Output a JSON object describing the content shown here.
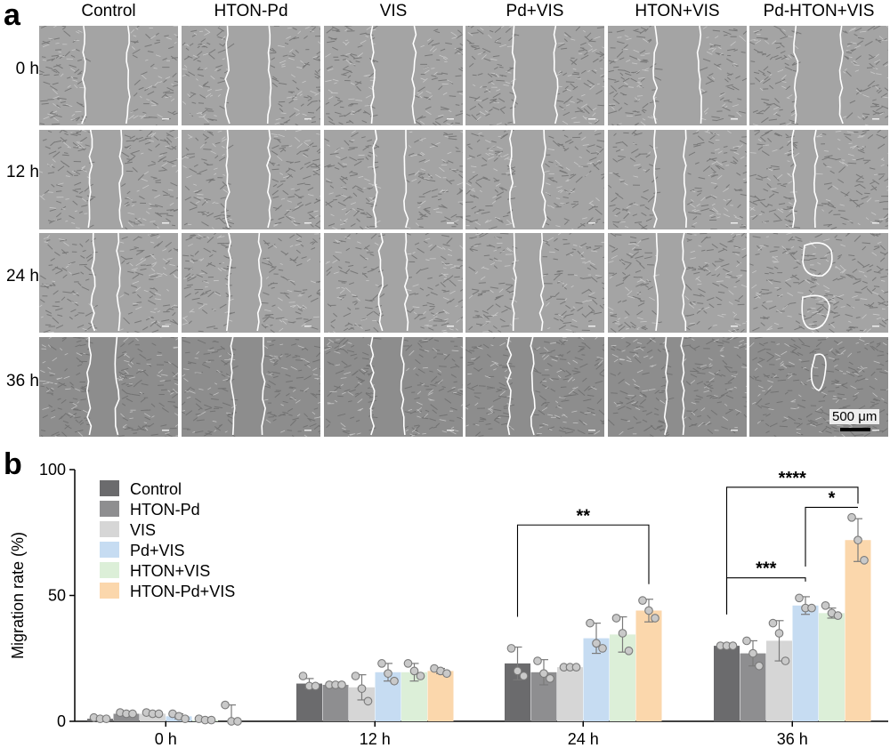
{
  "panel_a": {
    "letter": "a",
    "columns": [
      "Control",
      "HTON-Pd",
      "VIS",
      "Pd+VIS",
      "HTON+VIS",
      "Pd-HTON+VIS"
    ],
    "rows": [
      "0 h",
      "12 h",
      "24 h",
      "36 h"
    ],
    "scale_bar": "500 μm"
  },
  "panel_b": {
    "letter": "b"
  },
  "chart_data": {
    "type": "bar",
    "ylabel": "Migration rate (%)",
    "ylim": [
      0,
      100
    ],
    "yticks": [
      0,
      50,
      100
    ],
    "categories": [
      "0 h",
      "12 h",
      "24 h",
      "36 h"
    ],
    "series": [
      {
        "name": "Control",
        "color": "#6b6b6d",
        "values": [
          1,
          15,
          23,
          30
        ],
        "err": [
          0.5,
          2,
          6.5,
          0.5
        ],
        "points": [
          [
            1.5,
            1,
            1
          ],
          [
            18,
            14,
            14
          ],
          [
            29,
            20,
            18
          ],
          [
            30,
            30,
            30
          ]
        ]
      },
      {
        "name": "HTON-Pd",
        "color": "#8e8e90",
        "values": [
          3,
          14.5,
          19.5,
          27
        ],
        "err": [
          0.5,
          0.5,
          5,
          5
        ],
        "points": [
          [
            3.5,
            3,
            3
          ],
          [
            14.5,
            14.5,
            14.5
          ],
          [
            24,
            19,
            17
          ],
          [
            32,
            27,
            22
          ]
        ]
      },
      {
        "name": "VIS",
        "color": "#d6d6d6",
        "values": [
          3,
          13.5,
          21.5,
          32
        ],
        "err": [
          0.5,
          5,
          0.5,
          8
        ],
        "points": [
          [
            3.5,
            3,
            3
          ],
          [
            18,
            13,
            8
          ],
          [
            21.5,
            21.5,
            21.5
          ],
          [
            39,
            35,
            24
          ]
        ]
      },
      {
        "name": "Pd+VIS",
        "color": "#c6dcf2",
        "values": [
          2,
          19.5,
          33,
          46
        ],
        "err": [
          1,
          3.5,
          6,
          3.5
        ],
        "points": [
          [
            3,
            2,
            1
          ],
          [
            23,
            19,
            16
          ],
          [
            39,
            31,
            29
          ],
          [
            49,
            45,
            45
          ]
        ]
      },
      {
        "name": "HTON+VIS",
        "color": "#dcefd8",
        "values": [
          0.5,
          19.5,
          34.5,
          43
        ],
        "err": [
          0.5,
          3.5,
          7,
          2
        ],
        "points": [
          [
            1,
            0.5,
            0.5
          ],
          [
            23,
            20,
            18
          ],
          [
            41,
            35,
            28
          ],
          [
            46,
            43,
            42
          ]
        ]
      },
      {
        "name": "HTON-Pd+VIS",
        "color": "#fbd7ac",
        "values": [
          0,
          20,
          44,
          72
        ],
        "err": [
          6.5,
          1,
          4.5,
          8.5
        ],
        "points": [
          [
            6.5,
            0,
            0
          ],
          [
            21,
            20,
            19
          ],
          [
            48,
            44,
            41
          ],
          [
            81,
            72,
            64
          ]
        ]
      }
    ],
    "significance": [
      {
        "group": "24 h",
        "from": 0,
        "to": 5,
        "label": "**"
      },
      {
        "group": "36 h",
        "from": 0,
        "to": 5,
        "label": "****"
      },
      {
        "group": "36 h",
        "from": 3,
        "to": 5,
        "label": "*"
      },
      {
        "group": "36 h",
        "from": 0,
        "to": 3,
        "label": "***"
      }
    ]
  }
}
